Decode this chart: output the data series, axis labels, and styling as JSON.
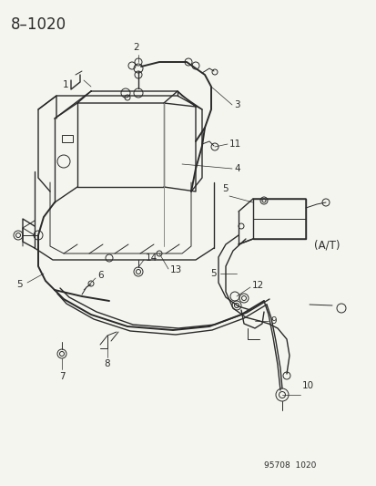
{
  "title": "8–1020",
  "bg_color": "#f5f5f0",
  "line_color": "#2a2a2a",
  "figsize": [
    4.14,
    5.33
  ],
  "dpi": 100,
  "watermark": "95708  1020",
  "at_label": "(A/T)"
}
